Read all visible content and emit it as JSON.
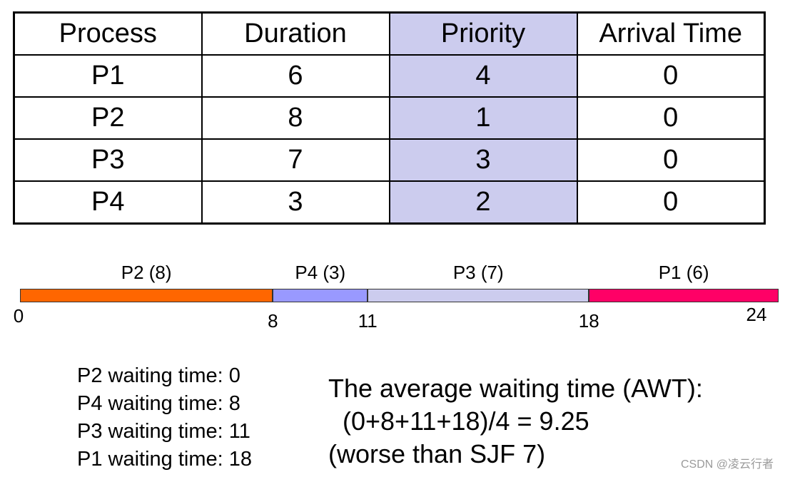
{
  "table": {
    "headers": [
      "Process",
      "Duration",
      "Priority",
      "Arrival Time"
    ],
    "highlight_column": 2,
    "highlight_color": "#ccccee",
    "rows": [
      [
        "P1",
        "6",
        "4",
        "0"
      ],
      [
        "P2",
        "8",
        "1",
        "0"
      ],
      [
        "P3",
        "7",
        "3",
        "0"
      ],
      [
        "P4",
        "3",
        "2",
        "0"
      ]
    ]
  },
  "gantt": {
    "start": 0,
    "end": 24,
    "segments": [
      {
        "label": "P2 (8)",
        "process": "P2",
        "start": 0,
        "end": 8,
        "color": "#ff6600"
      },
      {
        "label": "P4 (3)",
        "process": "P4",
        "start": 8,
        "end": 11,
        "color": "#9999ff"
      },
      {
        "label": "P3 (7)",
        "process": "P3",
        "start": 11,
        "end": 18,
        "color": "#ccccee"
      },
      {
        "label": "P1 (6)",
        "process": "P1",
        "start": 18,
        "end": 24,
        "color": "#ff0066"
      }
    ],
    "ticks": [
      "0",
      "8",
      "11",
      "18",
      "24"
    ]
  },
  "waiting": [
    "P2 waiting time: 0",
    "P4 waiting time: 8",
    "P3 waiting time: 11",
    "P1 waiting time: 18"
  ],
  "summary": {
    "line1": "The average waiting time (AWT):",
    "line2": "  (0+8+11+18)/4 = 9.25",
    "line3": "(worse than SJF 7)"
  },
  "watermark": "CSDN @凌云行者"
}
